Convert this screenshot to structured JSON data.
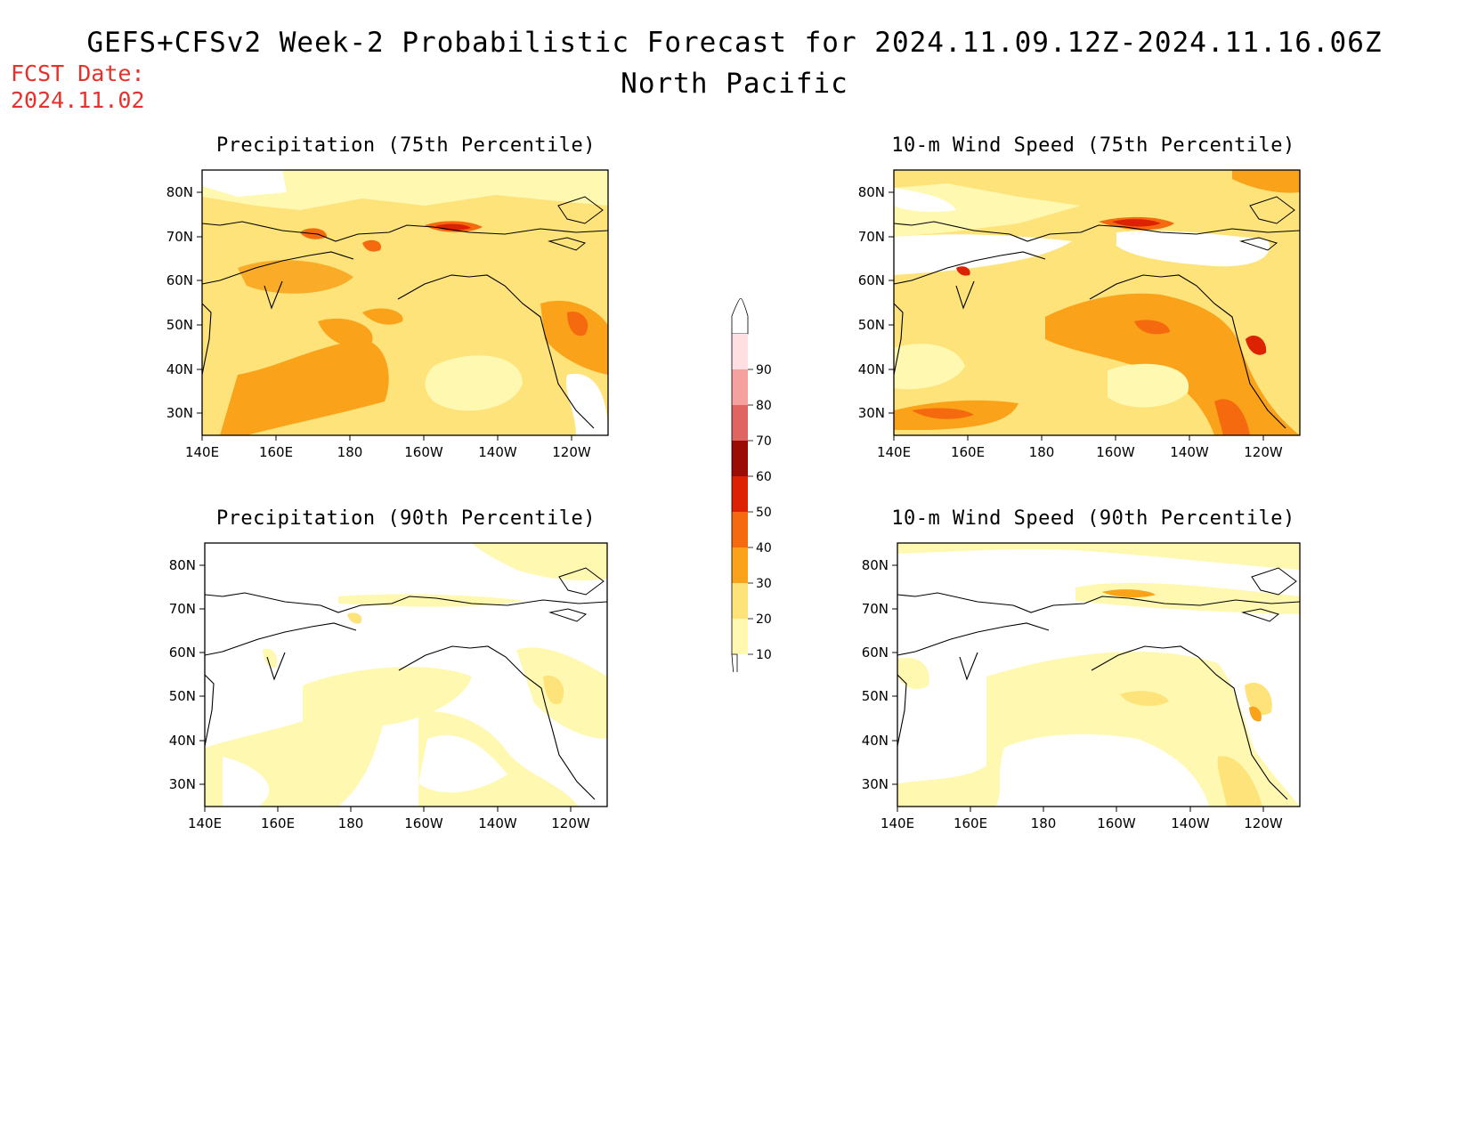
{
  "header": {
    "title": "GEFS+CFSv2 Week-2 Probabilistic Forecast for 2024.11.09.12Z-2024.11.16.06Z",
    "subtitle": "North Pacific",
    "fcst_date": "FCST Date:\n2024.11.02"
  },
  "axes": {
    "lon_ticks": [
      "140E",
      "160E",
      "180",
      "160W",
      "140W",
      "120W"
    ],
    "lat_ticks": [
      "30N",
      "40N",
      "50N",
      "60N",
      "70N",
      "80N"
    ]
  },
  "panels": [
    {
      "id": "precip-75",
      "title": "Precipitation (75th Percentile)"
    },
    {
      "id": "wind-75",
      "title": "10-m Wind Speed (75th Percentile)"
    },
    {
      "id": "precip-90",
      "title": "Precipitation (90th Percentile)"
    },
    {
      "id": "wind-90",
      "title": "10-m Wind Speed (90th Percentile)"
    }
  ],
  "colorbar": {
    "levels": [
      "10",
      "20",
      "30",
      "40",
      "50",
      "60",
      "70",
      "80",
      "90"
    ],
    "colors": [
      "#fff8b0",
      "#fde37a",
      "#f9a21a",
      "#f56a0e",
      "#dd2204",
      "#9b0c04",
      "#de6561",
      "#f4a1a0",
      "#ffdfe2"
    ]
  }
}
